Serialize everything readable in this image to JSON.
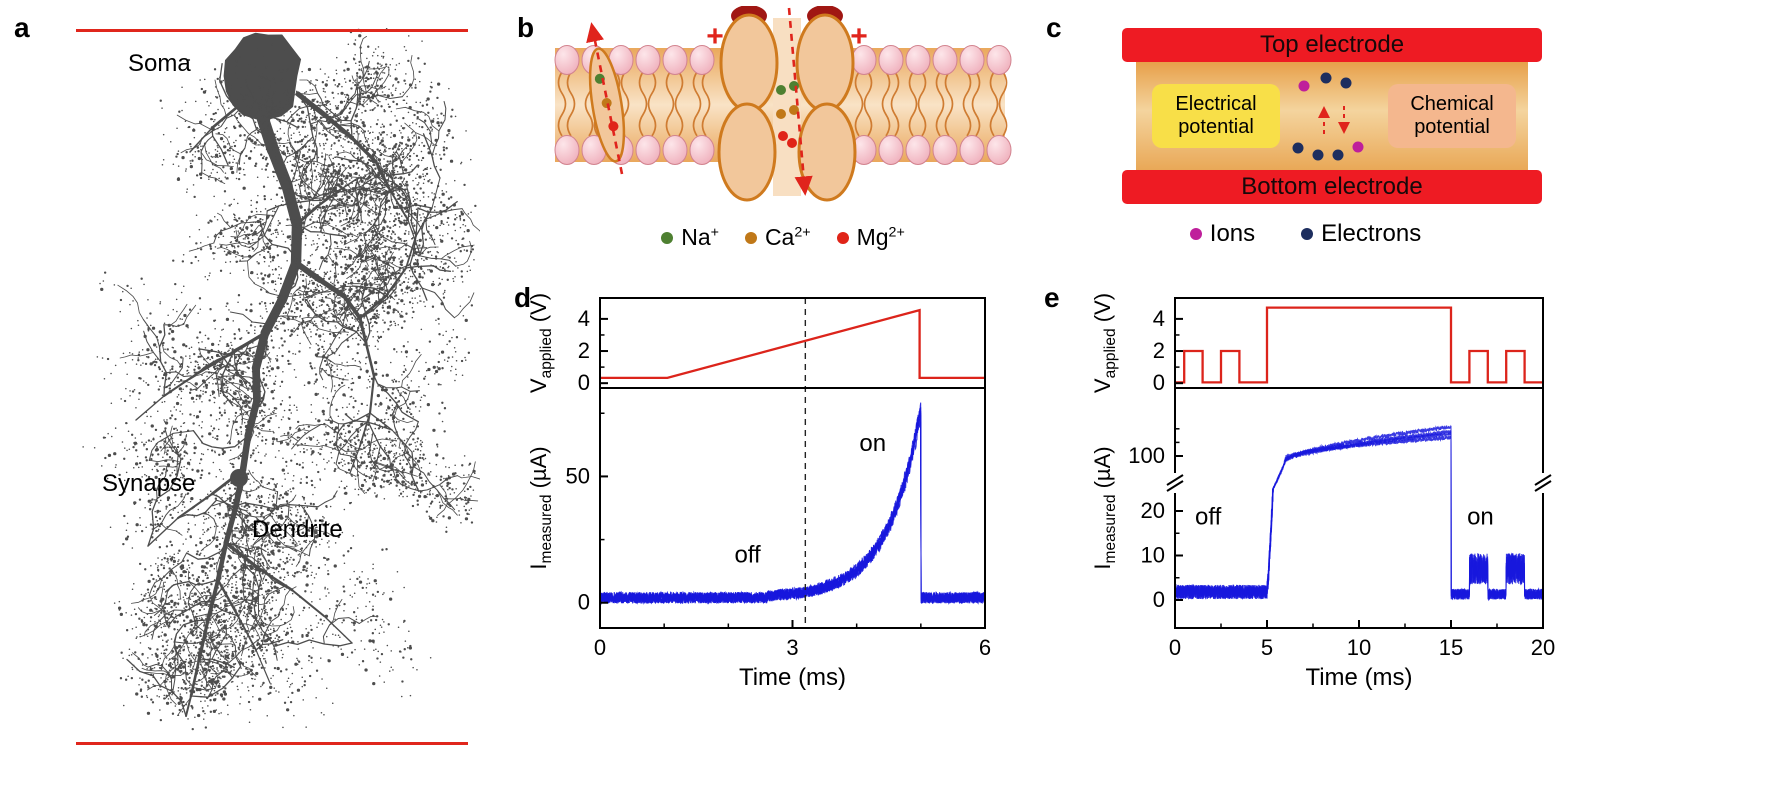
{
  "colors": {
    "red": "#e0241c",
    "blue": "#1717dd",
    "neuron_gray": "#4d4d4d",
    "electrode_red": "#ee1b23"
  },
  "panels": {
    "a": {
      "label": "a",
      "annotations": {
        "soma": "Soma",
        "synapse": "Synapse",
        "dendrite": "Dendrite"
      }
    },
    "b": {
      "label": "b",
      "plus_sign": "+",
      "legend": [
        {
          "name": "sodium",
          "base": "Na",
          "sup": "+",
          "color": "#4e8031"
        },
        {
          "name": "calcium",
          "base": "Ca",
          "sup": "2+",
          "color": "#c07818"
        },
        {
          "name": "magnesium",
          "base": "Mg",
          "sup": "2+",
          "color": "#e02418"
        }
      ]
    },
    "c": {
      "label": "c",
      "top_electrode": "Top electrode",
      "bottom_electrode": "Bottom electrode",
      "electrical_potential": "Electrical potential",
      "chemical_potential": "Chemical potential",
      "legend": [
        {
          "label": "Ions",
          "color": "#bf1f9b"
        },
        {
          "label": "Electrons",
          "color": "#1d2e5f"
        }
      ],
      "dot_rows": {
        "top": [
          "ion",
          "electron",
          "electron"
        ],
        "bottom": [
          "electron",
          "electron",
          "electron",
          "ion"
        ]
      }
    },
    "d": {
      "label": "d"
    },
    "e": {
      "label": "e"
    }
  },
  "chart_data": [
    {
      "panel": "d",
      "type": "line",
      "xlabel": "Time (ms)",
      "xlim": [
        0,
        6
      ],
      "xticks": [
        0,
        3,
        6
      ],
      "x_minor_ticks": [
        1,
        2,
        4,
        5
      ],
      "dashed_guide_x": 3.2,
      "subplots": [
        {
          "ylabel": {
            "main": "V",
            "sub": "applied",
            "unit": "(V)"
          },
          "ylim": [
            -0.3,
            5.3
          ],
          "yticks": [
            0,
            2,
            4
          ],
          "y_minor_ticks": [
            1,
            3
          ],
          "series": [
            {
              "name": "applied-voltage",
              "color": "#dc241b",
              "x": [
                0,
                1.05,
                4.98,
                4.98,
                6
              ],
              "y": [
                0.33,
                0.33,
                4.55,
                0.33,
                0.33
              ],
              "description": "voltage ramp from 0.33 V at 1 ms to 4.55 V at 5 ms, then back to 0.33 V"
            }
          ]
        },
        {
          "ylabel": {
            "main": "I",
            "sub": "measured",
            "unit": "(µA)"
          },
          "ylim": [
            -10,
            85
          ],
          "yticks": [
            0,
            50
          ],
          "y_minor_ticks": [
            25,
            75
          ],
          "series": [
            {
              "name": "measured-current",
              "color": "#1717dd",
              "profile": {
                "baseline": 2,
                "noise": 2.2,
                "rise_start": 2.6,
                "peak_min": 70,
                "peak_max": 78,
                "tau": 0.52,
                "peak_t": 5,
                "sweeps": 6
              },
              "description": "noisy ~2 µA off-current until ~3.3 ms, exponential rise to ~75 µA at 5 ms, abrupt drop back to ~2 µA"
            }
          ],
          "annotations": [
            {
              "text": "off",
              "x": 2.3,
              "y": 16
            },
            {
              "text": "on",
              "x": 4.25,
              "y": 60
            }
          ]
        }
      ]
    },
    {
      "panel": "e",
      "type": "line",
      "xlabel": "Time (ms)",
      "xlim": [
        0,
        20
      ],
      "xticks": [
        0,
        5,
        10,
        15,
        20
      ],
      "x_minor_ticks": [
        2.5,
        7.5,
        12.5,
        17.5
      ],
      "subplots": [
        {
          "ylabel": {
            "main": "V",
            "sub": "applied",
            "unit": "(V)"
          },
          "ylim": [
            -0.3,
            5.3
          ],
          "yticks": [
            0,
            2,
            4
          ],
          "y_minor_ticks": [
            1,
            3
          ],
          "series": [
            {
              "name": "applied-voltage",
              "color": "#dc241b",
              "x": [
                0,
                0.5,
                0.5,
                1.5,
                1.5,
                2.5,
                2.5,
                3.5,
                3.5,
                5,
                5,
                15,
                15,
                16,
                16,
                17,
                17,
                18,
                18,
                19,
                19,
                20
              ],
              "y": [
                0.05,
                0.05,
                2,
                2,
                0.05,
                0.05,
                2,
                2,
                0.05,
                0.05,
                4.7,
                4.7,
                0.05,
                0.05,
                2,
                2,
                0.05,
                0.05,
                2,
                2,
                0.05,
                0.05
              ],
              "description": "2 V read pulses, 4.7 V write pulse from 5 to 15 ms, then 2 V read pulses"
            }
          ]
        },
        {
          "ylabel": {
            "main": "I",
            "sub": "measured",
            "unit": "(µA)"
          },
          "axis_break": {
            "lower_ticks": [
              0,
              10,
              20
            ],
            "upper_ticks": [
              100
            ],
            "lower_minor_ticks": [
              5,
              15
            ],
            "upper_minor_ticks": [
              120,
              140
            ],
            "break_between": [
              20,
              100
            ]
          },
          "series": [
            {
              "name": "measured-current",
              "color": "#1717dd",
              "profile": {
                "baseline": 1.8,
                "noise": 1.6,
                "on_start": 5,
                "on_end": 15,
                "plateau_from": 95,
                "plateau_to_min": 126,
                "plateau_to_max": 142,
                "bursts": [
                  [
                    16,
                    17
                  ],
                  [
                    18,
                    19
                  ]
                ],
                "burst_level": 7,
                "sweeps": 4
              },
              "description": "off-current ~2 µA before 5 ms, steep rise across axis break to ~100 µA, gradual growth to ~140 µA at 15 ms, drop, then ~5-12 µA bursts during read pulses"
            }
          ],
          "annotations": [
            {
              "text": "off",
              "x": 1.8,
              "y": 17
            },
            {
              "text": "on",
              "x": 16.6,
              "y": 17
            }
          ]
        }
      ]
    }
  ]
}
